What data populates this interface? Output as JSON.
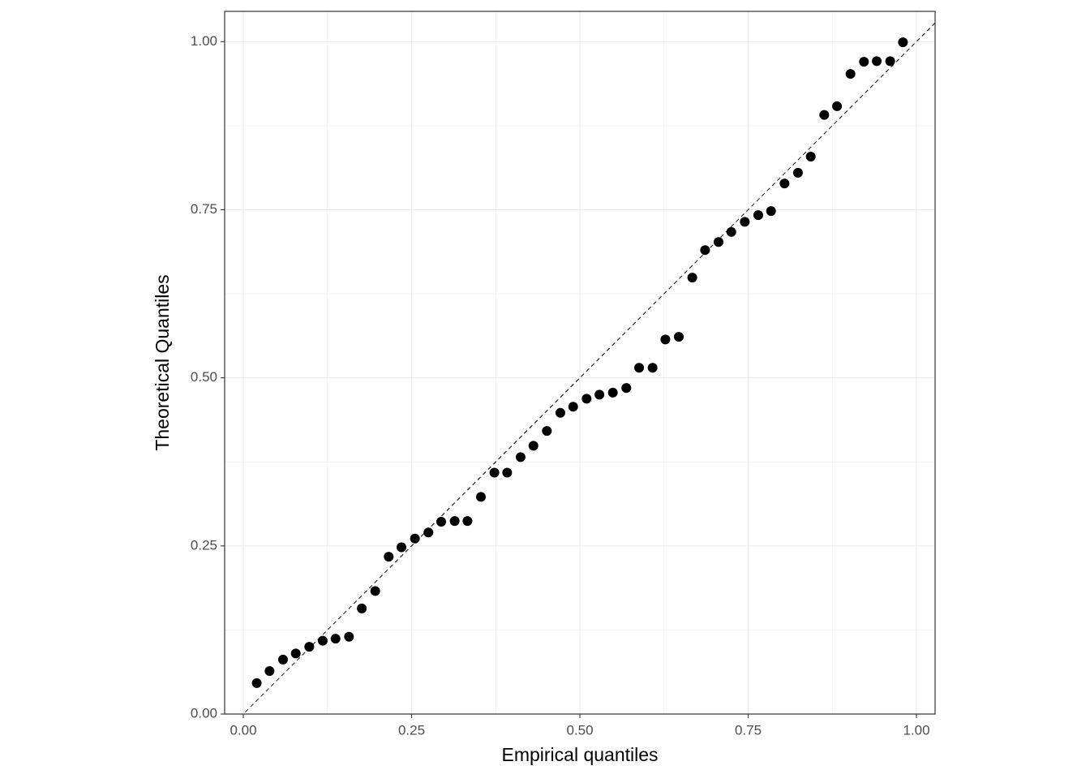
{
  "chart_data": {
    "type": "scatter",
    "x_label": "Empirical quantiles",
    "y_label": "Theoretical Quantiles",
    "x": [
      0.02,
      0.039,
      0.059,
      0.078,
      0.098,
      0.118,
      0.137,
      0.157,
      0.176,
      0.196,
      0.216,
      0.235,
      0.255,
      0.275,
      0.294,
      0.314,
      0.333,
      0.353,
      0.373,
      0.392,
      0.412,
      0.431,
      0.451,
      0.471,
      0.49,
      0.51,
      0.529,
      0.549,
      0.569,
      0.588,
      0.608,
      0.627,
      0.647,
      0.667,
      0.686,
      0.706,
      0.725,
      0.745,
      0.765,
      0.784,
      0.804,
      0.824,
      0.843,
      0.863,
      0.882,
      0.902,
      0.922,
      0.941,
      0.961,
      0.98
    ],
    "values": [
      0.046,
      0.064,
      0.081,
      0.09,
      0.1,
      0.109,
      0.112,
      0.115,
      0.157,
      0.183,
      0.234,
      0.248,
      0.261,
      0.27,
      0.286,
      0.287,
      0.287,
      0.323,
      0.359,
      0.359,
      0.382,
      0.399,
      0.421,
      0.448,
      0.457,
      0.469,
      0.475,
      0.478,
      0.485,
      0.515,
      0.515,
      0.557,
      0.561,
      0.649,
      0.69,
      0.702,
      0.717,
      0.732,
      0.742,
      0.748,
      0.789,
      0.805,
      0.829,
      0.891,
      0.904,
      0.952,
      0.97,
      0.971,
      0.971,
      0.999
    ],
    "color": "#000000",
    "xlim": [
      -0.0277,
      1.0277
    ],
    "ylim": [
      0,
      1.045
    ],
    "xticks": [
      {
        "value": 0,
        "label": "0.00"
      },
      {
        "value": 0.25,
        "label": "0.25"
      },
      {
        "value": 0.5,
        "label": "0.50"
      },
      {
        "value": 0.75,
        "label": "0.75"
      },
      {
        "value": 1,
        "label": "1.00"
      }
    ],
    "yticks": [
      {
        "value": 0,
        "label": "0.00"
      },
      {
        "value": 0.25,
        "label": "0.25"
      },
      {
        "value": 0.5,
        "label": "0.50"
      },
      {
        "value": 0.75,
        "label": "0.75"
      },
      {
        "value": 1,
        "label": "1.00"
      }
    ],
    "x_minor_ticks": [
      0.125,
      0.375,
      0.625,
      0.875
    ],
    "y_minor_ticks": [
      0.125,
      0.375,
      0.625,
      0.875
    ],
    "grid": true,
    "reference_line": {
      "slope": 1,
      "intercept": 0
    }
  }
}
